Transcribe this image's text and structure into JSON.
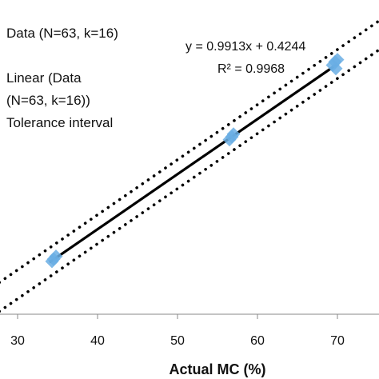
{
  "chart_data": {
    "type": "scatter",
    "xlabel": "Actual MC (%)",
    "ylabel": "",
    "xlim": [
      28,
      76
    ],
    "ylim": [
      25,
      80
    ],
    "xticks": [
      30,
      40,
      50,
      60,
      70
    ],
    "legend": [
      "Data (N=63, k=16)",
      "Linear (Data (N=63, k=16))",
      "Tolerance interval"
    ],
    "legend_lines": [
      "Data (N=63, k=16)",
      "Linear (Data",
      "(N=63, k=16))",
      "Tolerance interval"
    ],
    "legend_position": "top-left",
    "equation": "y = 0.9913x + 0.4244",
    "r_squared": "R² = 0.9968",
    "fit": {
      "slope": 0.9913,
      "intercept": 0.4244,
      "x_range": [
        34,
        70
      ]
    },
    "tolerance_offset": 2.6,
    "tolerance_x_range": [
      27,
      76
    ],
    "points": [
      {
        "x": 34.5,
        "y": 34.7
      },
      {
        "x": 34.8,
        "y": 35.2
      },
      {
        "x": 34.3,
        "y": 34.3
      },
      {
        "x": 56.8,
        "y": 56.7
      },
      {
        "x": 56.5,
        "y": 56.2
      },
      {
        "x": 57.0,
        "y": 57.2
      },
      {
        "x": 69.4,
        "y": 69.6
      },
      {
        "x": 69.7,
        "y": 70.2
      },
      {
        "x": 69.8,
        "y": 69.0
      },
      {
        "x": 70.0,
        "y": 70.6
      }
    ],
    "colors": {
      "points": "#6aaee4",
      "fit": "#000000",
      "tolerance": "#000000",
      "axis": "#888888"
    }
  }
}
